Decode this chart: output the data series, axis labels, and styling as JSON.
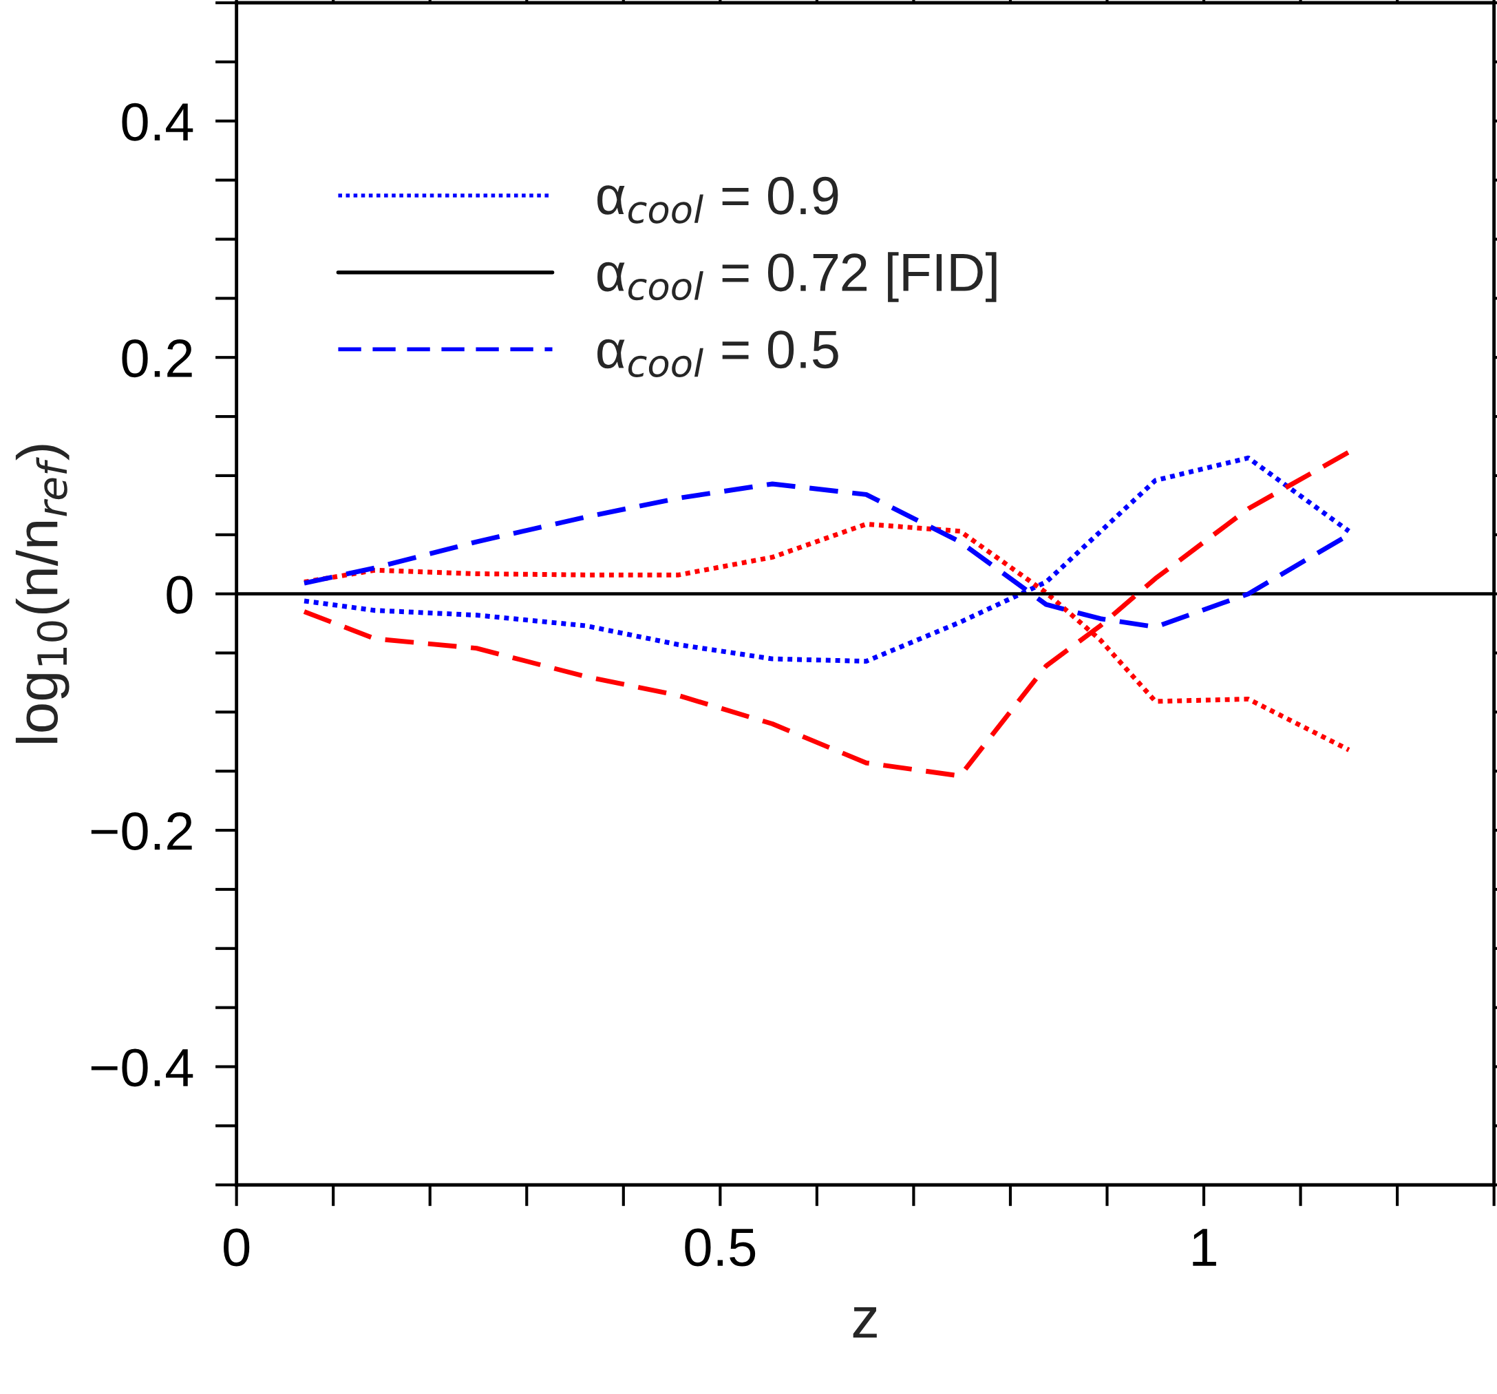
{
  "chart_data": {
    "type": "line",
    "xlabel": "z",
    "ylabel": "log$_{10}$(n/n$_{ref}$)",
    "xlim": [
      0,
      1.3
    ],
    "ylim": [
      -0.5,
      0.5
    ],
    "xticks": [
      0,
      0.5,
      1
    ],
    "yticks": [
      {
        "value": -0.4,
        "label": "−0.4"
      },
      {
        "value": -0.2,
        "label": "−0.2"
      },
      0,
      0.2,
      0.4
    ],
    "grid": false,
    "legend": "top left",
    "marker": "none",
    "series": [
      {
        "name": "α$_{cool}$ = 0.9",
        "color": "#0000ff",
        "line_style": "dotted",
        "x": [
          0.07,
          0.143,
          0.248,
          0.361,
          0.457,
          0.554,
          0.651,
          0.748,
          0.837,
          0.95,
          1.046,
          1.15
        ],
        "values": [
          -0.006,
          -0.014,
          -0.018,
          -0.027,
          -0.043,
          -0.055,
          -0.057,
          -0.024,
          0.01,
          0.096,
          0.115,
          0.053
        ]
      },
      {
        "color": "#ff0000",
        "line_style": "dotted",
        "x": [
          0.07,
          0.143,
          0.248,
          0.361,
          0.457,
          0.554,
          0.651,
          0.748,
          0.837,
          0.893,
          0.95,
          1.046,
          1.15
        ],
        "values": [
          0.01,
          0.02,
          0.017,
          0.016,
          0.016,
          0.031,
          0.059,
          0.053,
          0.001,
          -0.039,
          -0.091,
          -0.089,
          -0.132
        ]
      },
      {
        "name": "α$_{cool}$ = 0.72 [FID]",
        "color": "#000000",
        "line_style": "solid",
        "x": [
          0,
          1.3
        ],
        "values": [
          0,
          0
        ]
      },
      {
        "name": "α$_{cool}$ = 0.5",
        "color": "#0000ff",
        "line_style": "dashed",
        "x": [
          0.07,
          0.143,
          0.248,
          0.361,
          0.457,
          0.554,
          0.651,
          0.748,
          0.837,
          0.893,
          0.95,
          1.046,
          1.15
        ],
        "values": [
          0.009,
          0.022,
          0.044,
          0.065,
          0.081,
          0.093,
          0.084,
          0.044,
          -0.009,
          -0.021,
          -0.028,
          0,
          0.05
        ]
      },
      {
        "color": "#ff0000",
        "line_style": "dashed",
        "x": [
          0.07,
          0.143,
          0.248,
          0.361,
          0.457,
          0.554,
          0.651,
          0.748,
          0.837,
          0.893,
          0.95,
          1.046,
          1.15
        ],
        "values": [
          -0.015,
          -0.038,
          -0.046,
          -0.07,
          -0.086,
          -0.11,
          -0.143,
          -0.154,
          -0.061,
          -0.027,
          0.013,
          0.072,
          0.12
        ]
      }
    ]
  }
}
